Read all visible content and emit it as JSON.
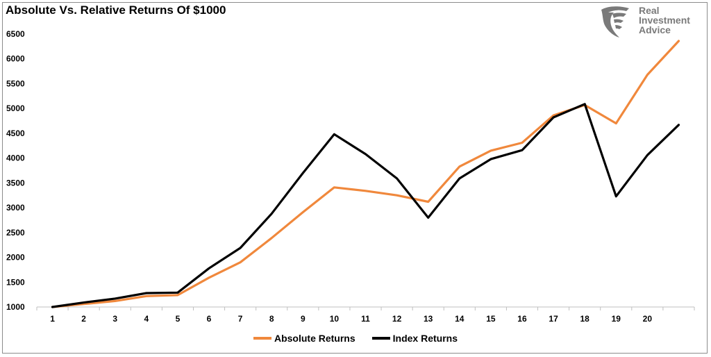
{
  "header": {
    "title": "Absolute Vs. Relative Returns Of $1000"
  },
  "logo": {
    "name": "eagle-logo-icon",
    "lines": [
      "Real",
      "Investment",
      "Advice"
    ],
    "color": "#7a7a7a"
  },
  "chart_data": {
    "type": "line",
    "title": "Absolute Vs. Relative Returns Of $1000",
    "xlabel": "",
    "ylabel": "",
    "categories": [
      "1",
      "2",
      "3",
      "4",
      "5",
      "6",
      "7",
      "8",
      "9",
      "10",
      "11",
      "12",
      "13",
      "14",
      "15",
      "16",
      "17",
      "18",
      "19",
      "20",
      ""
    ],
    "ylim": [
      1000,
      6500
    ],
    "yticks": [
      1000,
      1500,
      2000,
      2500,
      3000,
      3500,
      4000,
      4500,
      5000,
      5500,
      6000,
      6500
    ],
    "grid": false,
    "legend_position": "bottom",
    "series": [
      {
        "name": "Absolute Returns",
        "color": "#f0883c",
        "values": [
          1000,
          1060,
          1120,
          1220,
          1240,
          1590,
          1900,
          2390,
          2910,
          3410,
          3340,
          3250,
          3120,
          3830,
          4150,
          4310,
          4860,
          5070,
          4700,
          5680,
          6360
        ]
      },
      {
        "name": "Index Returns",
        "color": "#000000",
        "values": [
          1000,
          1090,
          1170,
          1280,
          1290,
          1780,
          2190,
          2880,
          3700,
          4480,
          4080,
          3590,
          2800,
          3590,
          3980,
          4160,
          4820,
          5090,
          3230,
          4060,
          4670
        ]
      }
    ]
  }
}
